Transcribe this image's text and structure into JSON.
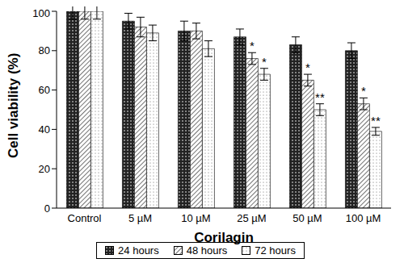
{
  "chart_data": {
    "type": "bar",
    "x_label": "Corilagin",
    "y_label": "Cell viability (%)",
    "categories": [
      "Control",
      "5 µM",
      "10 µM",
      "25 µM",
      "50 µM",
      "100 µM"
    ],
    "series": [
      {
        "name": "24 hours",
        "color": "#222222",
        "values": [
          100,
          95,
          90,
          87,
          83,
          80
        ],
        "errors": [
          4,
          4,
          5,
          4,
          4,
          4
        ],
        "annotations": [
          null,
          null,
          null,
          null,
          null,
          null
        ]
      },
      {
        "name": "48 hours",
        "color": "#444444",
        "values": [
          100,
          92,
          90,
          76,
          65,
          53
        ],
        "errors": [
          4,
          5,
          4,
          3,
          3,
          3
        ],
        "annotations": [
          null,
          null,
          null,
          "*",
          "*",
          "*"
        ]
      },
      {
        "name": "72 hours",
        "color": "#666666",
        "values": [
          100,
          89,
          81,
          68,
          50,
          39
        ],
        "errors": [
          4,
          4,
          4,
          3,
          3,
          2
        ],
        "annotations": [
          null,
          null,
          null,
          "*",
          "**",
          "**"
        ]
      }
    ],
    "ylim": [
      0,
      100
    ],
    "yticks": [
      0,
      20,
      40,
      60,
      80,
      100
    ],
    "grid": false,
    "legend": "bottom"
  }
}
